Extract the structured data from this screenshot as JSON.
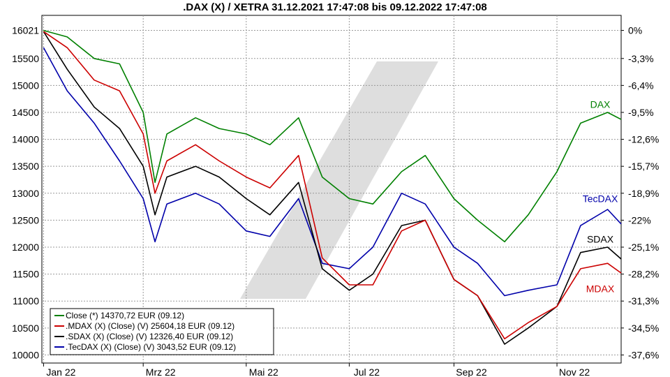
{
  "chart_data": {
    "type": "line",
    "title": ".DAX (X) / XETRA 31.12.2021 17:47:08 bis 09.12.2022 17:47:08",
    "x_ticks": [
      "Jan 22",
      "Mrz 22",
      "Mai 22",
      "Jul 22",
      "Sep 22",
      "Nov 22"
    ],
    "y_left_ticks": [
      16021,
      15500,
      15000,
      14500,
      14000,
      13500,
      13000,
      12500,
      12000,
      11500,
      11000,
      10500,
      10000
    ],
    "y_right_ticks": [
      "0%",
      "-3,3%",
      "-6,4%",
      "-9,5%",
      "-12,6%",
      "-15,7%",
      "-18,9%",
      "-22%",
      "-25,1%",
      "-28,2%",
      "-31,3%",
      "-34,5%",
      "-37,6%"
    ],
    "ylim": [
      9850,
      16300
    ],
    "x_range": [
      "2021-12-31",
      "2022-12-09"
    ],
    "grid": true,
    "legend_position": "bottom-left",
    "x_dates": [
      "2022-01-01",
      "2022-01-15",
      "2022-01-31",
      "2022-02-15",
      "2022-03-01",
      "2022-03-08",
      "2022-03-15",
      "2022-04-01",
      "2022-04-15",
      "2022-05-01",
      "2022-05-15",
      "2022-06-01",
      "2022-06-15",
      "2022-07-01",
      "2022-07-15",
      "2022-08-01",
      "2022-08-15",
      "2022-09-01",
      "2022-09-15",
      "2022-10-01",
      "2022-10-15",
      "2022-11-01",
      "2022-11-15",
      "2022-12-01",
      "2022-12-09"
    ],
    "series": [
      {
        "name": "DAX",
        "color": "#008000",
        "legend": "Close (*) 14370,72 EUR (09.12)",
        "values": [
          16020,
          15900,
          15500,
          15400,
          14500,
          13200,
          14100,
          14400,
          14200,
          14100,
          13900,
          14400,
          13300,
          12900,
          12800,
          13400,
          13700,
          12900,
          12500,
          12100,
          12600,
          13400,
          14300,
          14500,
          14370
        ]
      },
      {
        "name": "MDAX",
        "color": "#cc0000",
        "legend": ".MDAX (X) (Close) (V) 25604,18 EUR (09.12)",
        "values": [
          16000,
          15700,
          15100,
          14900,
          14100,
          13000,
          13600,
          13900,
          13600,
          13300,
          13100,
          13700,
          11800,
          11300,
          11300,
          12300,
          12500,
          11400,
          11100,
          10300,
          10600,
          10900,
          11600,
          11700,
          11520
        ]
      },
      {
        "name": "SDAX",
        "color": "#000000",
        "legend": ".SDAX (X) (Close) (V) 12326,40 EUR (09.12)",
        "values": [
          16000,
          15300,
          14600,
          14200,
          13500,
          12600,
          13300,
          13500,
          13300,
          12900,
          12600,
          13200,
          11600,
          11200,
          11500,
          12400,
          12500,
          11400,
          11100,
          10200,
          10500,
          10900,
          11900,
          12000,
          11780
        ]
      },
      {
        "name": "TecDAX",
        "color": "#0000aa",
        "legend": ".TecDAX (X) (Close) (V) 3043,52 EUR (09.12)",
        "values": [
          15700,
          14900,
          14300,
          13600,
          12900,
          12100,
          12800,
          13000,
          12800,
          12300,
          12200,
          12900,
          11700,
          11600,
          12000,
          13000,
          12800,
          12000,
          11700,
          11100,
          11200,
          11300,
          12400,
          12700,
          12430
        ]
      }
    ],
    "line_labels": [
      "DAX",
      "TecDAX",
      "SDAX",
      "MDAX"
    ]
  }
}
